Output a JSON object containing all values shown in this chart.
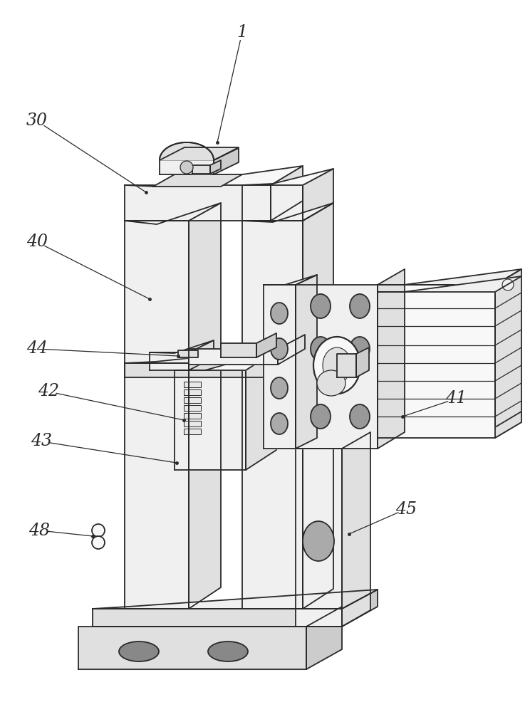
{
  "background_color": "#ffffff",
  "line_color": "#2a2a2a",
  "line_width": 1.3,
  "face_light": "#f0f0f0",
  "face_mid": "#e0e0e0",
  "face_dark": "#cccccc",
  "face_white": "#f8f8f8",
  "label_fontsize": 17
}
